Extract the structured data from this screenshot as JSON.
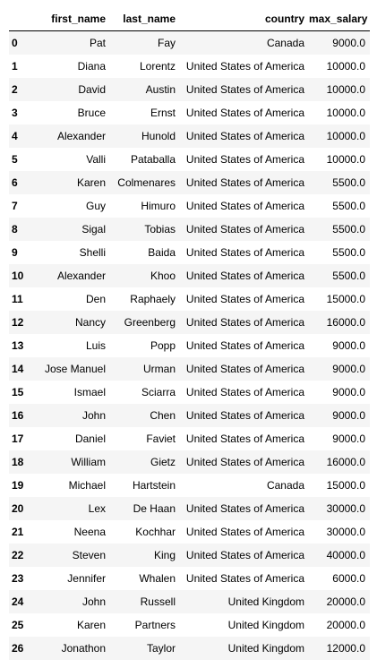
{
  "table": {
    "columns": [
      "",
      "first_name",
      "last_name",
      "country",
      "max_salary"
    ],
    "rows": [
      {
        "index": "0",
        "first_name": "Pat",
        "last_name": "Fay",
        "country": "Canada",
        "max_salary": "9000.0"
      },
      {
        "index": "1",
        "first_name": "Diana",
        "last_name": "Lorentz",
        "country": "United States of America",
        "max_salary": "10000.0"
      },
      {
        "index": "2",
        "first_name": "David",
        "last_name": "Austin",
        "country": "United States of America",
        "max_salary": "10000.0"
      },
      {
        "index": "3",
        "first_name": "Bruce",
        "last_name": "Ernst",
        "country": "United States of America",
        "max_salary": "10000.0"
      },
      {
        "index": "4",
        "first_name": "Alexander",
        "last_name": "Hunold",
        "country": "United States of America",
        "max_salary": "10000.0"
      },
      {
        "index": "5",
        "first_name": "Valli",
        "last_name": "Pataballa",
        "country": "United States of America",
        "max_salary": "10000.0"
      },
      {
        "index": "6",
        "first_name": "Karen",
        "last_name": "Colmenares",
        "country": "United States of America",
        "max_salary": "5500.0"
      },
      {
        "index": "7",
        "first_name": "Guy",
        "last_name": "Himuro",
        "country": "United States of America",
        "max_salary": "5500.0"
      },
      {
        "index": "8",
        "first_name": "Sigal",
        "last_name": "Tobias",
        "country": "United States of America",
        "max_salary": "5500.0"
      },
      {
        "index": "9",
        "first_name": "Shelli",
        "last_name": "Baida",
        "country": "United States of America",
        "max_salary": "5500.0"
      },
      {
        "index": "10",
        "first_name": "Alexander",
        "last_name": "Khoo",
        "country": "United States of America",
        "max_salary": "5500.0"
      },
      {
        "index": "11",
        "first_name": "Den",
        "last_name": "Raphaely",
        "country": "United States of America",
        "max_salary": "15000.0"
      },
      {
        "index": "12",
        "first_name": "Nancy",
        "last_name": "Greenberg",
        "country": "United States of America",
        "max_salary": "16000.0"
      },
      {
        "index": "13",
        "first_name": "Luis",
        "last_name": "Popp",
        "country": "United States of America",
        "max_salary": "9000.0"
      },
      {
        "index": "14",
        "first_name": "Jose Manuel",
        "last_name": "Urman",
        "country": "United States of America",
        "max_salary": "9000.0"
      },
      {
        "index": "15",
        "first_name": "Ismael",
        "last_name": "Sciarra",
        "country": "United States of America",
        "max_salary": "9000.0"
      },
      {
        "index": "16",
        "first_name": "John",
        "last_name": "Chen",
        "country": "United States of America",
        "max_salary": "9000.0"
      },
      {
        "index": "17",
        "first_name": "Daniel",
        "last_name": "Faviet",
        "country": "United States of America",
        "max_salary": "9000.0"
      },
      {
        "index": "18",
        "first_name": "William",
        "last_name": "Gietz",
        "country": "United States of America",
        "max_salary": "16000.0"
      },
      {
        "index": "19",
        "first_name": "Michael",
        "last_name": "Hartstein",
        "country": "Canada",
        "max_salary": "15000.0"
      },
      {
        "index": "20",
        "first_name": "Lex",
        "last_name": "De Haan",
        "country": "United States of America",
        "max_salary": "30000.0"
      },
      {
        "index": "21",
        "first_name": "Neena",
        "last_name": "Kochhar",
        "country": "United States of America",
        "max_salary": "30000.0"
      },
      {
        "index": "22",
        "first_name": "Steven",
        "last_name": "King",
        "country": "United States of America",
        "max_salary": "40000.0"
      },
      {
        "index": "23",
        "first_name": "Jennifer",
        "last_name": "Whalen",
        "country": "United States of America",
        "max_salary": "6000.0"
      },
      {
        "index": "24",
        "first_name": "John",
        "last_name": "Russell",
        "country": "United Kingdom",
        "max_salary": "20000.0"
      },
      {
        "index": "25",
        "first_name": "Karen",
        "last_name": "Partners",
        "country": "United Kingdom",
        "max_salary": "20000.0"
      },
      {
        "index": "26",
        "first_name": "Jonathon",
        "last_name": "Taylor",
        "country": "United Kingdom",
        "max_salary": "12000.0"
      }
    ]
  },
  "colors": {
    "stripe": "#f5f5f5",
    "header_rule": "#000000"
  }
}
